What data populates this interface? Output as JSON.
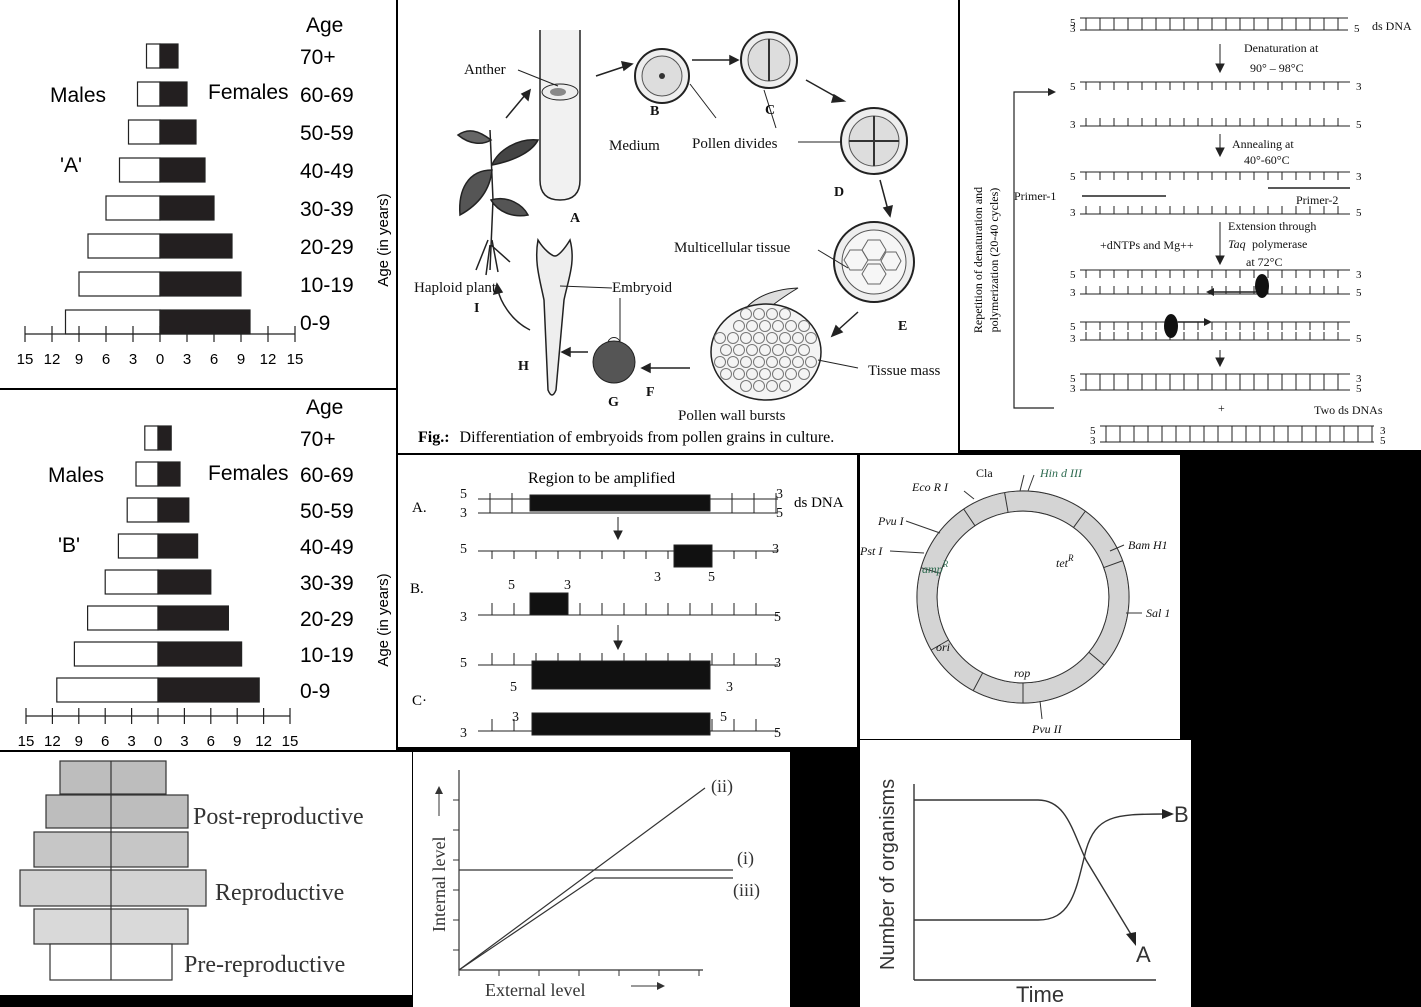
{
  "pyramid_a": {
    "age_header": "Age",
    "age_labels": [
      "70+",
      "60-69",
      "50-59",
      "40-49",
      "30-39",
      "20-29",
      "10-19",
      "0-9"
    ],
    "males": "Males",
    "females": "Females",
    "tag": "'A'",
    "axis_title": "Age (in years)",
    "ticks": [
      "15",
      "12",
      "9",
      "6",
      "3",
      "0",
      "3",
      "6",
      "9",
      "12",
      "15"
    ],
    "male_values": [
      1.5,
      2.5,
      3.5,
      4.5,
      6.0,
      8.0,
      9.0,
      10.5
    ],
    "female_values": [
      2.0,
      3.0,
      4.0,
      5.0,
      6.0,
      8.0,
      9.0,
      10.0
    ]
  },
  "pyramid_b": {
    "age_header": "Age",
    "age_labels": [
      "70+",
      "60-69",
      "50-59",
      "40-49",
      "30-39",
      "20-29",
      "10-19",
      "0-9"
    ],
    "males": "Males",
    "females": "Females",
    "tag": "'B'",
    "axis_title": "Age (in years)",
    "ticks": [
      "15",
      "12",
      "9",
      "6",
      "3",
      "0",
      "3",
      "6",
      "9",
      "12",
      "15"
    ],
    "male_values": [
      1.5,
      2.5,
      3.5,
      4.5,
      6.0,
      8.0,
      9.5,
      11.5
    ],
    "female_values": [
      1.5,
      2.5,
      3.5,
      4.5,
      6.0,
      8.0,
      9.5,
      11.5
    ]
  },
  "embryoid": {
    "labels": {
      "anther": "Anther",
      "medium": "Medium",
      "pollen_divides": "Pollen divides",
      "multicellular": "Multicellular tissue",
      "tissue_mass": "Tissue mass",
      "pollen_wall": "Pollen wall bursts",
      "embryoid": "Embryoid",
      "haploid_plant": "Haploid plant"
    },
    "letters": [
      "A",
      "B",
      "C",
      "D",
      "E",
      "F",
      "G",
      "H",
      "I"
    ],
    "caption_prefix": "Fig.:",
    "caption": "Differentiation of embryoids from pollen grains in culture."
  },
  "pcr_cycle": {
    "ds_dna": "ds DNA",
    "denaturation": "Denaturation at",
    "denat_temp": "90° – 98°C",
    "annealing": "Annealing at",
    "anneal_temp": "40°-60°C",
    "primer1": "Primer-1",
    "primer2": "Primer-2",
    "extension": "Extension through",
    "taq": "Taq",
    "polymerase": "polymerase",
    "ext_temp": "at 72°C",
    "dntps": "+dNTPs and Mg++",
    "repetition_1": "Repetition of denaturation and",
    "repetition_2": "polymerization (20-40 cycles)",
    "plus": "+",
    "two_ds": "Two ds DNAs",
    "five": "5",
    "three": "3"
  },
  "pcr_abc": {
    "title": "Region to be amplified",
    "ds_dna": "ds DNA",
    "row_labels": [
      "A.",
      "B.",
      "C·"
    ],
    "five": "5",
    "three": "3"
  },
  "plasmid": {
    "sites": [
      "Cla",
      "Eco R I",
      "Pvu I",
      "Pst I",
      "Bam H1",
      "Sal 1",
      "Pvu II"
    ],
    "hind": "Hin d III",
    "genes": [
      "amp",
      "tet",
      "ori",
      "rop"
    ],
    "superscript": "R"
  },
  "age_pyramid": {
    "labels": [
      "Post-reproductive",
      "Reproductive",
      "Pre-reproductive"
    ]
  },
  "regulator": {
    "y_label": "Internal level",
    "x_label": "External level",
    "curves": [
      "(ii)",
      "(i)",
      "(iii)"
    ]
  },
  "growth": {
    "y_label": "Number of organisms",
    "x_label": "Time",
    "a": "A",
    "b": "B"
  },
  "colors": {
    "bar_dark": "#231f20",
    "pyramid_fill": "#bdbdbd",
    "pyramid_light": "#d9d9d9",
    "plasmid_ring": "#d4d4d4"
  }
}
